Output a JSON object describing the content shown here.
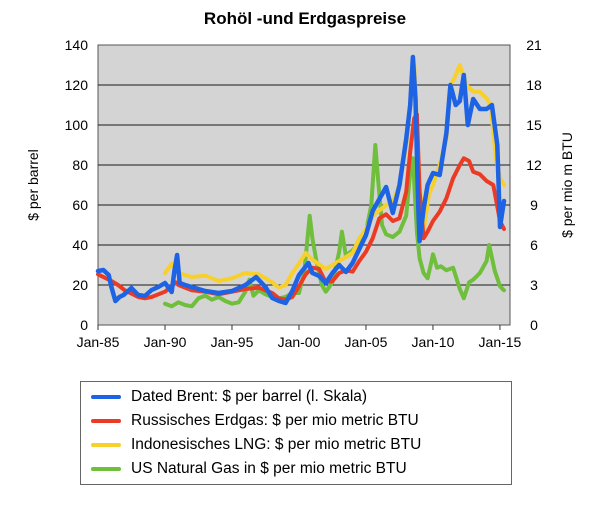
{
  "chart_data": {
    "type": "line",
    "title": "Rohöl -und Erdgaspreise",
    "ylabel_left": "$ per barrel",
    "ylabel_right": "$ per mio m BTU",
    "ylim_left": [
      0,
      140
    ],
    "ylim_right": [
      0,
      21
    ],
    "yticks_left": [
      "0",
      "20",
      "40",
      "60",
      "80",
      "100",
      "120",
      "140"
    ],
    "yticks_right": [
      "0",
      "3",
      "6",
      "9",
      "12",
      "15",
      "18",
      "21"
    ],
    "xlim": [
      1985.0,
      2015.75
    ],
    "xticks": [
      {
        "label": "Jan-85",
        "value": 1985.0
      },
      {
        "label": "Jan-90",
        "value": 1990.0
      },
      {
        "label": "Jan-95",
        "value": 1995.0
      },
      {
        "label": "Jan-00",
        "value": 2000.0
      },
      {
        "label": "Jan-05",
        "value": 2005.0
      },
      {
        "label": "Jan-10",
        "value": 2010.0
      },
      {
        "label": "Jan-15",
        "value": 2015.0
      }
    ],
    "grid": true,
    "background": "#d4d4d4",
    "legend_position": "bottom",
    "series": [
      {
        "name": "US Natural  Gas in $ per mio  metric BTU",
        "axis": "right",
        "color": "#6fbe3c",
        "x": [
          1990.0,
          1990.5,
          1991.0,
          1991.5,
          1992.0,
          1992.5,
          1993.0,
          1993.5,
          1994.0,
          1994.5,
          1995.0,
          1995.5,
          1996.0,
          1996.3,
          1996.6,
          1997.0,
          1997.5,
          1998.0,
          1998.5,
          1999.0,
          1999.5,
          2000.0,
          2000.4,
          2000.8,
          2001.0,
          2001.3,
          2001.7,
          2002.0,
          2002.5,
          2003.0,
          2003.2,
          2003.5,
          2004.0,
          2004.5,
          2005.0,
          2005.4,
          2005.7,
          2005.9,
          2006.2,
          2006.5,
          2007.0,
          2007.5,
          2008.0,
          2008.3,
          2008.5,
          2008.8,
          2009.0,
          2009.3,
          2009.6,
          2009.9,
          2010.0,
          2010.3,
          2010.6,
          2011.0,
          2011.5,
          2012.0,
          2012.3,
          2012.7,
          2013.0,
          2013.5,
          2014.0,
          2014.2,
          2014.6,
          2015.0,
          2015.3
        ],
        "y": [
          1.6,
          1.4,
          1.7,
          1.5,
          1.4,
          2.0,
          2.2,
          1.9,
          2.1,
          1.8,
          1.6,
          1.7,
          2.5,
          3.4,
          2.2,
          2.6,
          2.3,
          2.1,
          2.0,
          2.1,
          2.4,
          2.4,
          4.0,
          8.2,
          6.5,
          4.8,
          3.0,
          2.5,
          3.2,
          5.5,
          7.0,
          5.2,
          5.6,
          6.2,
          7.0,
          9.0,
          13.5,
          11.0,
          7.5,
          6.8,
          6.6,
          7.0,
          8.2,
          11.5,
          12.5,
          7.0,
          5.0,
          3.9,
          3.5,
          4.8,
          5.3,
          4.3,
          4.4,
          4.1,
          4.3,
          2.7,
          2.0,
          3.2,
          3.4,
          3.9,
          4.8,
          6.0,
          4.1,
          2.9,
          2.6
        ]
      },
      {
        "name": "Indonesisches LNG: $ per mio metric BTU",
        "axis": "right",
        "color": "#f7d02c",
        "x": [
          1990.0,
          1990.5,
          1991.0,
          1992.0,
          1993.0,
          1994.0,
          1995.0,
          1996.0,
          1997.0,
          1998.0,
          1998.5,
          1999.0,
          1999.5,
          2000.0,
          2000.5,
          2001.0,
          2002.0,
          2003.0,
          2004.0,
          2004.5,
          2005.0,
          2005.5,
          2006.0,
          2006.5,
          2007.0,
          2007.5,
          2008.0,
          2008.3,
          2008.6,
          2009.0,
          2009.3,
          2009.7,
          2010.0,
          2010.5,
          2011.0,
          2011.3,
          2011.6,
          2012.0,
          2012.5,
          2013.0,
          2013.5,
          2014.0,
          2014.3,
          2014.7,
          2015.0,
          2015.3
        ],
        "y": [
          3.9,
          4.6,
          3.9,
          3.6,
          3.7,
          3.3,
          3.5,
          3.9,
          3.8,
          3.2,
          2.8,
          3.0,
          3.9,
          4.6,
          5.4,
          4.9,
          4.2,
          4.8,
          5.4,
          6.5,
          7.2,
          8.2,
          8.6,
          9.0,
          9.2,
          10.5,
          13.5,
          16.5,
          19.5,
          10.5,
          7.0,
          9.8,
          10.5,
          12.0,
          14.0,
          18.0,
          18.5,
          19.5,
          18.0,
          17.5,
          17.5,
          17.0,
          16.5,
          12.5,
          11.0,
          10.5
        ]
      },
      {
        "name": "Russisches Erdgas: $ per mio metric BTU",
        "axis": "right",
        "color": "#ec3b24",
        "x": [
          1985.0,
          1986.0,
          1986.5,
          1987.0,
          1988.0,
          1988.5,
          1989.0,
          1990.0,
          1990.8,
          1991.0,
          1992.0,
          1993.0,
          1994.0,
          1995.0,
          1996.0,
          1997.0,
          1998.0,
          1998.5,
          1999.0,
          1999.5,
          2000.0,
          2000.5,
          2001.0,
          2001.5,
          2002.0,
          2002.5,
          2003.0,
          2003.5,
          2004.0,
          2004.5,
          2005.0,
          2005.5,
          2006.0,
          2006.5,
          2007.0,
          2007.5,
          2008.0,
          2008.3,
          2008.6,
          2008.8,
          2009.0,
          2009.3,
          2009.6,
          2010.0,
          2010.5,
          2011.0,
          2011.5,
          2012.0,
          2012.3,
          2012.7,
          2013.0,
          2013.5,
          2014.0,
          2014.5,
          2015.0,
          2015.3
        ],
        "y": [
          3.8,
          3.3,
          3.0,
          2.6,
          2.1,
          2.0,
          2.1,
          2.5,
          3.2,
          3.0,
          2.6,
          2.5,
          2.3,
          2.5,
          2.7,
          2.8,
          2.4,
          2.0,
          1.9,
          2.1,
          2.9,
          3.8,
          4.3,
          4.2,
          3.2,
          3.3,
          3.9,
          4.1,
          4.0,
          4.8,
          5.5,
          6.5,
          8.0,
          8.3,
          7.8,
          8.0,
          10.0,
          13.0,
          15.5,
          15.8,
          10.0,
          6.5,
          7.0,
          7.8,
          8.5,
          9.5,
          11.0,
          12.0,
          12.5,
          12.3,
          11.5,
          11.3,
          10.8,
          10.5,
          7.8,
          7.2
        ]
      },
      {
        "name": "Dated Brent: $ per barrel (l. Skala)",
        "axis": "left",
        "color": "#1d63e4",
        "x": [
          1985.0,
          1985.4,
          1985.8,
          1986.0,
          1986.3,
          1986.6,
          1986.9,
          1987.5,
          1988.0,
          1988.5,
          1989.0,
          1989.5,
          1990.0,
          1990.5,
          1990.7,
          1990.9,
          1991.1,
          1991.5,
          1992.0,
          1993.0,
          1994.0,
          1995.0,
          1996.0,
          1996.8,
          1997.5,
          1998.0,
          1998.5,
          1999.0,
          1999.5,
          2000.0,
          2000.7,
          2001.0,
          2001.5,
          2002.0,
          2002.5,
          2003.0,
          2003.5,
          2004.0,
          2004.5,
          2005.0,
          2005.5,
          2006.0,
          2006.5,
          2007.0,
          2007.5,
          2008.0,
          2008.3,
          2008.5,
          2008.7,
          2008.9,
          2009.0,
          2009.3,
          2009.6,
          2010.0,
          2010.5,
          2011.0,
          2011.3,
          2011.7,
          2012.0,
          2012.3,
          2012.6,
          2013.0,
          2013.5,
          2014.0,
          2014.4,
          2014.8,
          2015.0,
          2015.3
        ],
        "y": [
          27.0,
          27.5,
          25.0,
          19.0,
          12.0,
          14.0,
          15.0,
          18.5,
          15.0,
          14.5,
          17.5,
          19.0,
          21.0,
          16.5,
          27.0,
          35.0,
          21.0,
          20.0,
          19.0,
          17.0,
          16.0,
          17.0,
          20.0,
          24.0,
          19.0,
          13.5,
          12.0,
          11.0,
          17.0,
          25.0,
          31.0,
          26.0,
          24.5,
          21.0,
          26.0,
          30.0,
          26.5,
          31.0,
          38.0,
          45.0,
          57.0,
          63.0,
          69.0,
          56.0,
          70.0,
          93.0,
          110.0,
          134.0,
          113.0,
          60.0,
          42.0,
          58.0,
          70.0,
          76.0,
          75.0,
          96.0,
          120.0,
          110.0,
          112.0,
          125.0,
          100.0,
          113.0,
          108.0,
          108.0,
          110.0,
          90.0,
          49.0,
          62.0
        ]
      }
    ]
  }
}
